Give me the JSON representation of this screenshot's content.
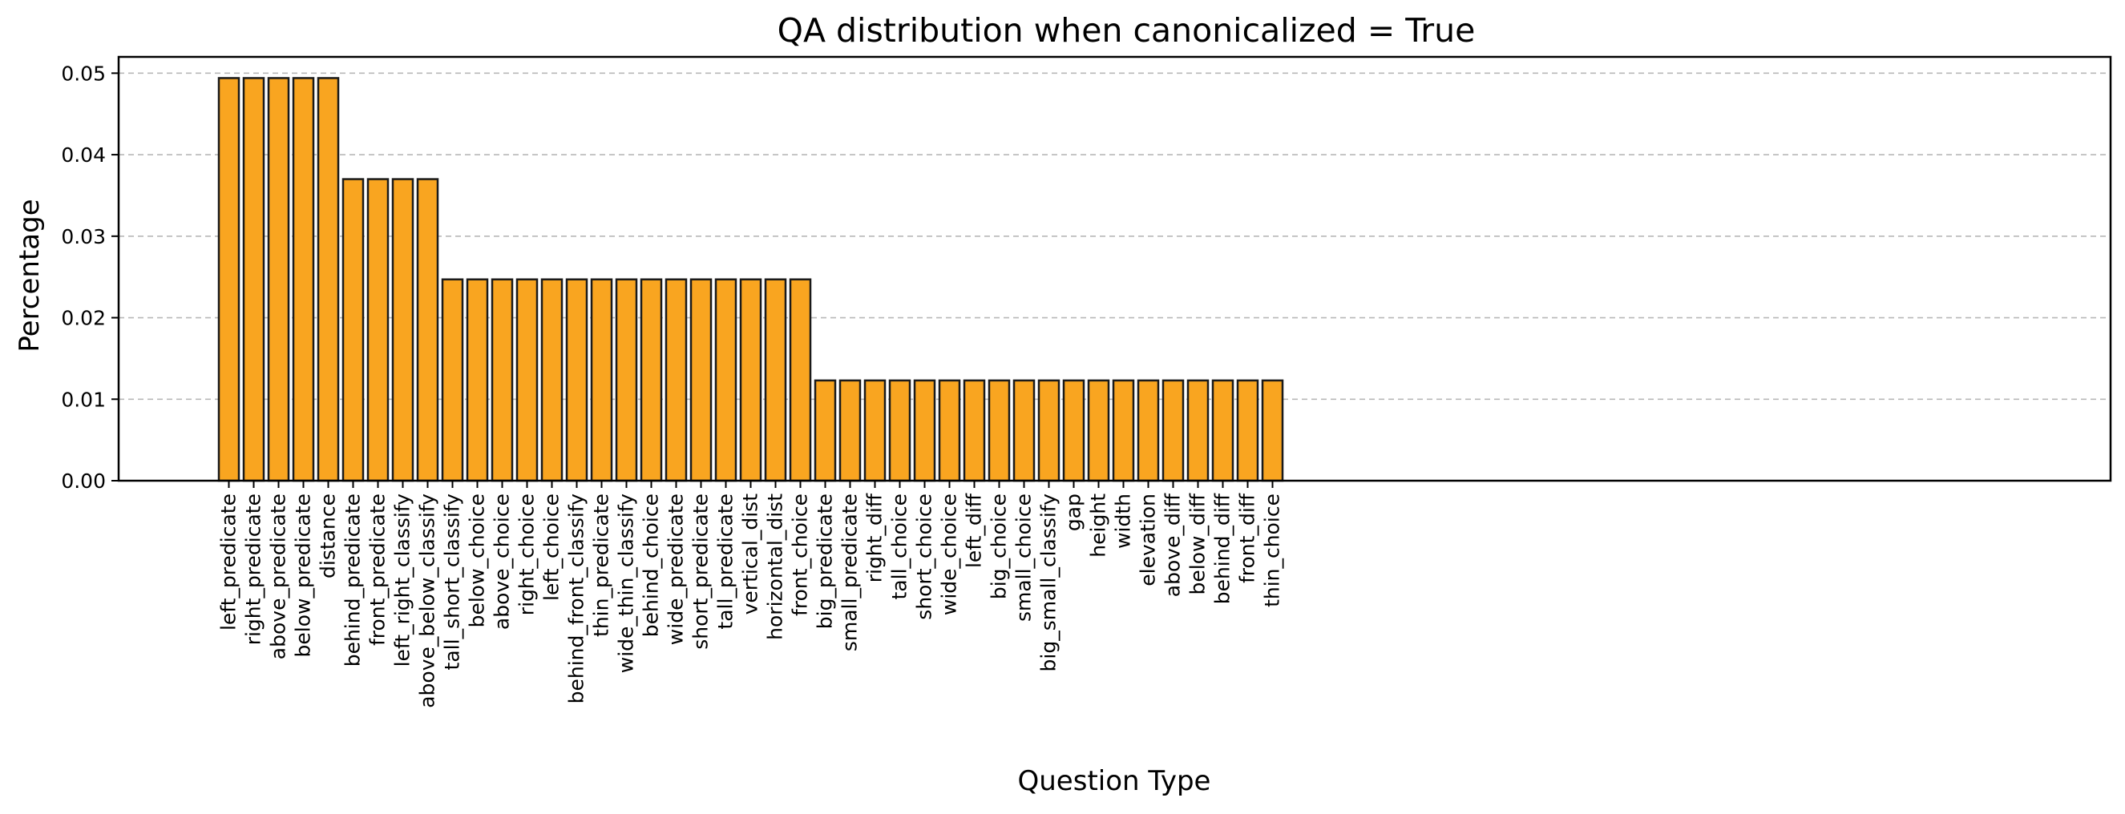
{
  "chart_data": {
    "type": "bar",
    "title": "QA distribution when canonicalized = True",
    "xlabel": "Question Type",
    "ylabel": "Percentage",
    "ylim": [
      0,
      0.052
    ],
    "yticks": [
      "0.00",
      "0.01",
      "0.02",
      "0.03",
      "0.04",
      "0.05"
    ],
    "grid": "y-dashed",
    "bar_color": "#F9A520",
    "edge_color": "#1a1a1a",
    "categories": [
      "left_predicate",
      "right_predicate",
      "above_predicate",
      "below_predicate",
      "distance",
      "behind_predicate",
      "front_predicate",
      "left_right_classify",
      "above_below_classify",
      "tall_short_classify",
      "below_choice",
      "above_choice",
      "right_choice",
      "left_choice",
      "behind_front_classify",
      "thin_predicate",
      "wide_thin_classify",
      "behind_choice",
      "wide_predicate",
      "short_predicate",
      "tall_predicate",
      "vertical_dist",
      "horizontal_dist",
      "front_choice",
      "big_predicate",
      "small_predicate",
      "right_diff",
      "tall_choice",
      "short_choice",
      "wide_choice",
      "left_diff",
      "big_choice",
      "small_choice",
      "big_small_classify",
      "gap",
      "height",
      "width",
      "elevation",
      "above_diff",
      "below_diff",
      "behind_diff",
      "front_diff",
      "thin_choice"
    ],
    "values": [
      0.0494,
      0.0494,
      0.0494,
      0.0494,
      0.0494,
      0.037,
      0.037,
      0.037,
      0.037,
      0.0247,
      0.0247,
      0.0247,
      0.0247,
      0.0247,
      0.0247,
      0.0247,
      0.0247,
      0.0247,
      0.0247,
      0.0247,
      0.0247,
      0.0247,
      0.0247,
      0.0247,
      0.0123,
      0.0123,
      0.0123,
      0.0123,
      0.0123,
      0.0123,
      0.0123,
      0.0123,
      0.0123,
      0.0123,
      0.0123,
      0.0123,
      0.0123,
      0.0123,
      0.0123,
      0.0123,
      0.0123,
      0.0123,
      0.0123
    ]
  }
}
